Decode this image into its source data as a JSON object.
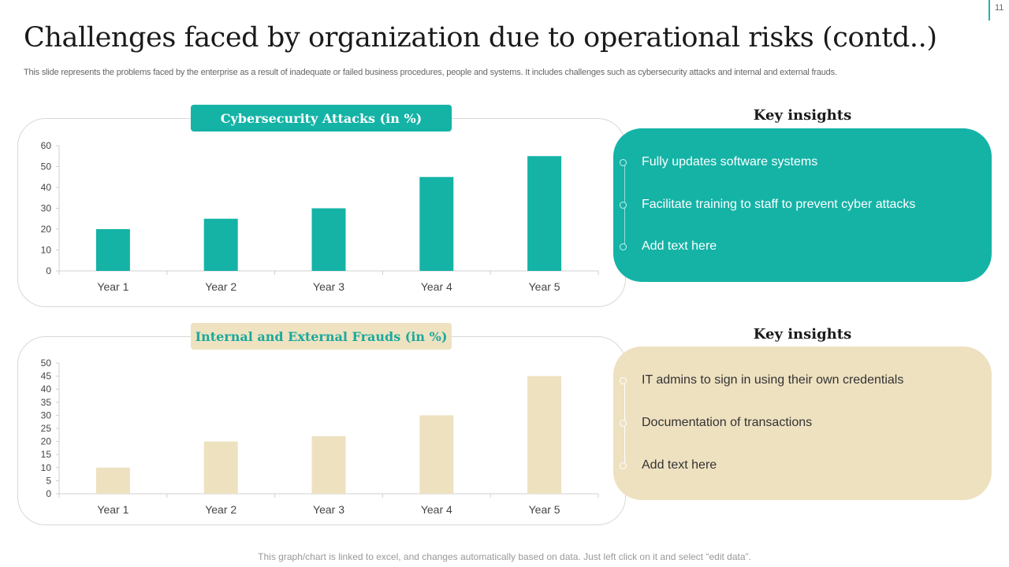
{
  "page_number": "11",
  "title": "Challenges faced by organization due to operational risks (contd..)",
  "subtitle": "This slide represents the problems faced by the enterprise as a result of inadequate or failed business procedures, people and systems. It includes challenges such as cybersecurity attacks and internal and external frauds.",
  "chart_data": [
    {
      "type": "bar",
      "title": "Cybersecurity Attacks (in %)",
      "categories": [
        "Year 1",
        "Year 2",
        "Year 3",
        "Year 4",
        "Year 5"
      ],
      "values": [
        20,
        25,
        30,
        45,
        55
      ],
      "ylim": [
        0,
        60
      ],
      "yticks": [
        0,
        10,
        20,
        30,
        40,
        50,
        60
      ],
      "xlabel": "",
      "ylabel": "",
      "color": "#14b3a6"
    },
    {
      "type": "bar",
      "title": "Internal and External Frauds (in %)",
      "categories": [
        "Year 1",
        "Year 2",
        "Year 3",
        "Year 4",
        "Year 5"
      ],
      "values": [
        10,
        20,
        22,
        30,
        45
      ],
      "ylim": [
        0,
        50
      ],
      "yticks": [
        0,
        5,
        10,
        15,
        20,
        25,
        30,
        35,
        40,
        45,
        50
      ],
      "xlabel": "",
      "ylabel": "",
      "color": "#eee1c0"
    }
  ],
  "insights": [
    {
      "heading": "Key insights",
      "items": [
        "Fully updates software systems",
        "Facilitate training to staff to prevent cyber attacks",
        "Add text here"
      ]
    },
    {
      "heading": "Key insights",
      "items": [
        "IT admins to sign in using their own credentials",
        "Documentation of transactions",
        "Add text here"
      ]
    }
  ],
  "footer": "This graph/chart is linked to excel, and changes automatically based on data. Just left click on it and select “edit data”."
}
